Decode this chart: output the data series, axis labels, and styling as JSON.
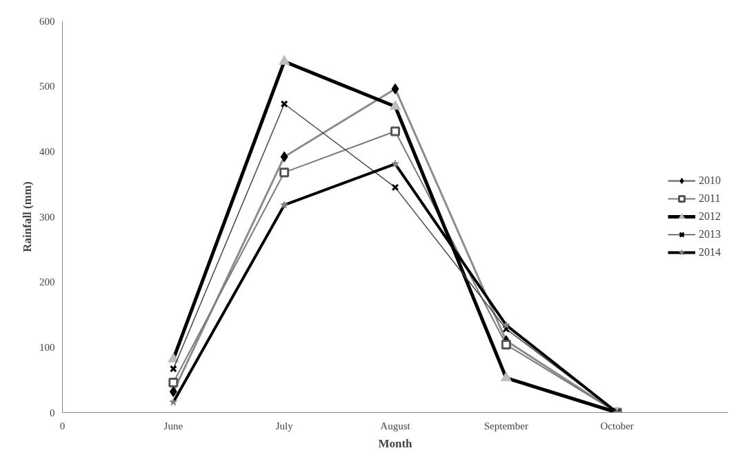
{
  "chart_data": {
    "type": "line",
    "xlabel": "Month",
    "ylabel": "Rainfall (mm)",
    "categories": [
      "June",
      "July",
      "August",
      "September",
      "October"
    ],
    "annotations": [
      "0"
    ],
    "ylim": [
      0,
      600
    ],
    "yticks": [
      0,
      100,
      200,
      300,
      400,
      500,
      600
    ],
    "grid": false,
    "legend": "right",
    "line_style": "solid",
    "series": [
      {
        "name": "2010",
        "color": "#8c8c8c",
        "colors": [
          "#000000",
          "#000000",
          "#000000",
          "#000000",
          "#000000"
        ],
        "marker": "diamond",
        "values": [
          32,
          392,
          496,
          110,
          0
        ]
      },
      {
        "name": "2011",
        "color": "#7a7a7a",
        "colors": [
          "#555555",
          "#555555",
          "#555555",
          "#555555",
          "#555555"
        ],
        "marker": "square",
        "values": [
          46,
          368,
          431,
          104,
          0
        ]
      },
      {
        "name": "2012",
        "color": "#000000",
        "colors": [
          "#bdbdbd",
          "#bdbdbd",
          "#bdbdbd",
          "#bdbdbd",
          "#bdbdbd"
        ],
        "marker": "triangle",
        "values": [
          82,
          538,
          469,
          53,
          0
        ]
      },
      {
        "name": "2013",
        "color": "#444444",
        "colors": [
          "#000000",
          "#000000",
          "#000000",
          "#000000",
          "#000000"
        ],
        "marker": "cross",
        "values": [
          67,
          473,
          345,
          128,
          0
        ]
      },
      {
        "name": "2014",
        "color": "#000000",
        "colors": [
          "#808080",
          "#808080",
          "#808080",
          "#808080",
          "#808080"
        ],
        "marker": "star",
        "values": [
          16,
          318,
          381,
          134,
          0
        ]
      }
    ]
  }
}
